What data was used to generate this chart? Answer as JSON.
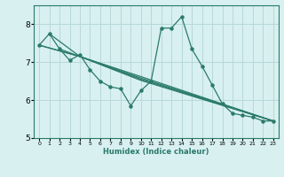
{
  "xlabel": "Humidex (Indice chaleur)",
  "ylabel": "",
  "bg_color": "#d8f0f0",
  "grid_color": "#b8d8d8",
  "line_color": "#2a7a6a",
  "xlim": [
    -0.5,
    23.5
  ],
  "ylim": [
    5,
    8.5
  ],
  "yticks": [
    5,
    6,
    7,
    8
  ],
  "xticks": [
    0,
    1,
    2,
    3,
    4,
    5,
    6,
    7,
    8,
    9,
    10,
    11,
    12,
    13,
    14,
    15,
    16,
    17,
    18,
    19,
    20,
    21,
    22,
    23
  ],
  "series": [
    [
      0,
      7.45
    ],
    [
      1,
      7.75
    ],
    [
      2,
      7.35
    ],
    [
      3,
      7.05
    ],
    [
      4,
      7.2
    ],
    [
      5,
      6.8
    ],
    [
      6,
      6.5
    ],
    [
      7,
      6.35
    ],
    [
      8,
      6.3
    ],
    [
      9,
      5.85
    ],
    [
      10,
      6.25
    ],
    [
      11,
      6.5
    ],
    [
      12,
      7.9
    ],
    [
      13,
      7.9
    ],
    [
      14,
      8.2
    ],
    [
      15,
      7.35
    ],
    [
      16,
      6.9
    ],
    [
      17,
      6.4
    ],
    [
      18,
      5.9
    ],
    [
      19,
      5.65
    ],
    [
      20,
      5.6
    ],
    [
      21,
      5.55
    ],
    [
      22,
      5.45
    ],
    [
      23,
      5.45
    ]
  ],
  "extra_lines": [
    [
      [
        0,
        7.45
      ],
      [
        4,
        7.15
      ],
      [
        10,
        6.55
      ],
      [
        23,
        5.45
      ]
    ],
    [
      [
        0,
        7.45
      ],
      [
        4,
        7.15
      ],
      [
        10,
        6.62
      ],
      [
        23,
        5.45
      ]
    ],
    [
      [
        1,
        7.75
      ],
      [
        4,
        7.15
      ],
      [
        10,
        6.58
      ],
      [
        23,
        5.45
      ]
    ],
    [
      [
        2,
        7.35
      ],
      [
        4,
        7.15
      ],
      [
        10,
        6.52
      ],
      [
        23,
        5.45
      ]
    ]
  ]
}
